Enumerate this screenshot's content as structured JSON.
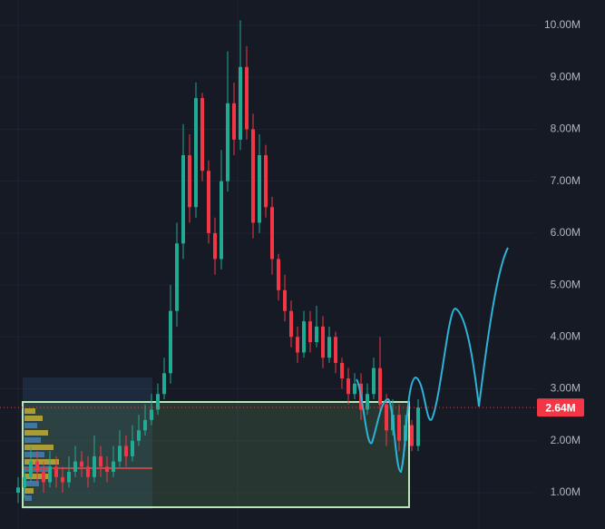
{
  "chart_data": {
    "type": "candlestick",
    "open": [
      1.0,
      1.1,
      1.3,
      1.6,
      1.4,
      1.2,
      1.5,
      1.3,
      1.2,
      1.4,
      1.6,
      1.5,
      1.3,
      1.7,
      1.5,
      1.4,
      1.6,
      1.9,
      1.7,
      2.0,
      2.2,
      2.4,
      2.6,
      2.9,
      3.3,
      4.5,
      5.8,
      7.5,
      6.5,
      8.6,
      7.2,
      6.0,
      5.5,
      7.0,
      8.5,
      7.8,
      9.2,
      8.0,
      6.2,
      7.5,
      6.5,
      5.5,
      4.9,
      4.5,
      4.0,
      3.7,
      4.3,
      3.9,
      4.2,
      3.6,
      4.0,
      3.5,
      3.2,
      2.9,
      3.1,
      2.6,
      2.9,
      3.4,
      2.7,
      2.2,
      2.5,
      2.0,
      2.3,
      1.9
    ],
    "high": [
      1.3,
      1.5,
      1.9,
      1.8,
      1.6,
      1.8,
      1.7,
      1.5,
      1.7,
      1.9,
      1.8,
      1.7,
      2.1,
      1.9,
      1.7,
      1.9,
      2.2,
      2.1,
      2.3,
      2.5,
      2.7,
      2.9,
      3.1,
      3.6,
      5.0,
      6.2,
      8.1,
      7.9,
      8.9,
      8.7,
      7.4,
      6.3,
      7.6,
      9.5,
      8.9,
      10.1,
      9.6,
      8.3,
      7.9,
      7.7,
      6.7,
      5.6,
      5.2,
      4.7,
      4.2,
      4.5,
      4.5,
      4.6,
      4.4,
      4.2,
      4.1,
      3.6,
      3.4,
      3.3,
      3.3,
      3.1,
      3.6,
      4.0,
      2.9,
      2.8,
      2.7,
      2.5,
      2.4,
      2.8
    ],
    "low": [
      0.8,
      0.9,
      1.2,
      1.2,
      1.0,
      1.1,
      1.1,
      1.0,
      1.1,
      1.3,
      1.3,
      1.1,
      1.2,
      1.3,
      1.2,
      1.3,
      1.5,
      1.5,
      1.6,
      1.9,
      2.1,
      2.3,
      2.5,
      2.8,
      3.1,
      4.2,
      5.5,
      6.2,
      6.3,
      7.0,
      5.8,
      5.2,
      5.3,
      6.8,
      7.5,
      7.6,
      7.8,
      5.9,
      6.0,
      6.3,
      5.2,
      4.7,
      4.3,
      3.8,
      3.5,
      3.6,
      3.7,
      3.8,
      3.4,
      3.5,
      3.3,
      3.0,
      2.7,
      2.8,
      2.4,
      2.5,
      2.8,
      2.5,
      1.9,
      2.1,
      1.8,
      1.9,
      1.8,
      1.8
    ],
    "close": [
      1.1,
      1.3,
      1.6,
      1.4,
      1.2,
      1.5,
      1.3,
      1.2,
      1.4,
      1.6,
      1.5,
      1.3,
      1.7,
      1.5,
      1.4,
      1.6,
      1.9,
      1.7,
      2.0,
      2.2,
      2.4,
      2.6,
      2.9,
      3.3,
      4.5,
      5.8,
      7.5,
      6.5,
      8.6,
      7.2,
      6.0,
      5.5,
      7.0,
      8.5,
      7.8,
      9.2,
      8.0,
      6.2,
      7.5,
      6.5,
      5.5,
      4.9,
      4.5,
      4.0,
      3.7,
      4.3,
      3.9,
      4.2,
      3.6,
      4.0,
      3.5,
      3.2,
      2.9,
      3.1,
      2.6,
      2.9,
      3.4,
      2.7,
      2.2,
      2.5,
      2.0,
      2.3,
      1.9,
      2.64
    ],
    "up_color": "#22ab94",
    "down_color": "#f23645",
    "ylim": [
      0.3,
      10.49
    ],
    "yticks": [
      {
        "value": 1,
        "label": "1.00M"
      },
      {
        "value": 2,
        "label": "2.00M"
      },
      {
        "value": 3,
        "label": "3.00M"
      },
      {
        "value": 4,
        "label": "4.00M"
      },
      {
        "value": 5,
        "label": "5.00M"
      },
      {
        "value": 6,
        "label": "6.00M"
      },
      {
        "value": 7,
        "label": "7.00M"
      },
      {
        "value": 8,
        "label": "8.00M"
      },
      {
        "value": 9,
        "label": "9.00M"
      },
      {
        "value": 10,
        "label": "10.00M"
      }
    ],
    "last_price": {
      "value": 2.64,
      "label": "2.64M"
    },
    "grid": true
  }
}
